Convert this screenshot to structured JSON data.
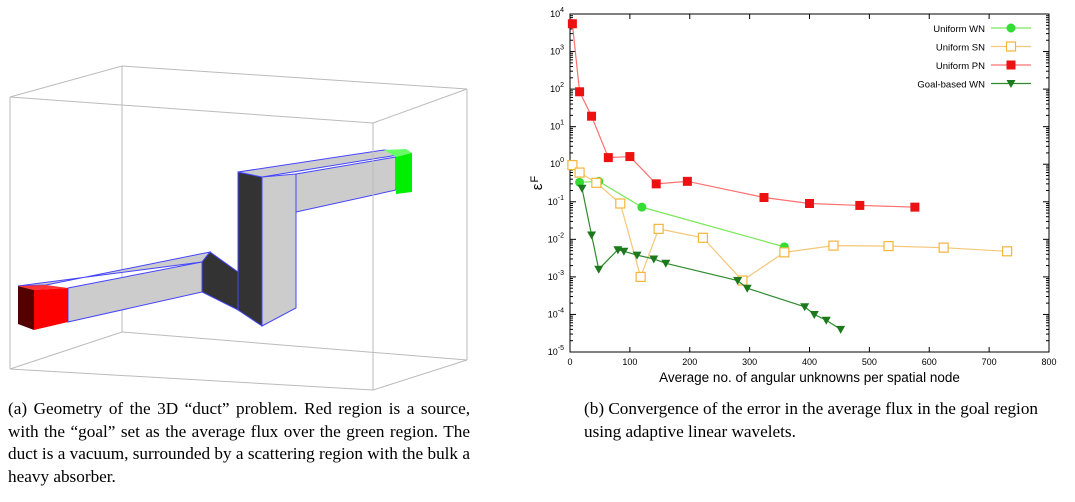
{
  "captions": {
    "a": "(a) Geometry of the 3D “duct” problem. Red region is a source, with the “goal” set as the average flux over the green region. The duct is a vacuum, surrounded by a scattering region with the bulk a heavy absorber.",
    "b": "(b) Convergence of the error in the average flux in the goal region using adaptive linear wavelets."
  },
  "colors": {
    "source": "#ff0000",
    "goal": "#00ee00",
    "duct": "#cccccc",
    "duct_dark": "#333333",
    "duct_edge": "#4444ff",
    "box": "#bbbbbb"
  },
  "chart_data": {
    "type": "line",
    "xlabel": "Average no. of angular unknowns per spatial node",
    "ylabel": "εF",
    "ylabel_main": "ε",
    "ylabel_sub": "F",
    "xlim": [
      0,
      800
    ],
    "ylim": [
      1e-05,
      10000.0
    ],
    "yscale": "log",
    "grid": false,
    "legend_position": "top-right",
    "x_ticks": [
      "0",
      "100",
      "200",
      "300",
      "400",
      "500",
      "600",
      "700",
      "800"
    ],
    "y_ticks": [
      {
        "base": "10",
        "exp": "-5"
      },
      {
        "base": "10",
        "exp": "-4"
      },
      {
        "base": "10",
        "exp": "-3"
      },
      {
        "base": "10",
        "exp": "-2"
      },
      {
        "base": "10",
        "exp": "-1"
      },
      {
        "base": "10",
        "exp": "0"
      },
      {
        "base": "10",
        "exp": "1"
      },
      {
        "base": "10",
        "exp": "2"
      },
      {
        "base": "10",
        "exp": "3"
      },
      {
        "base": "10",
        "exp": "4"
      }
    ],
    "series": [
      {
        "name": "Uniform WN",
        "color": "#7be85a",
        "marker": "circle-filled",
        "marker_color": "#33dd33",
        "points": [
          [
            16,
            0.33
          ],
          [
            48,
            0.35
          ],
          [
            120,
            0.072
          ],
          [
            358,
            0.0063
          ]
        ]
      },
      {
        "name": "Uniform SN",
        "color": "#f5c77a",
        "marker": "square-open",
        "marker_color": "#f5b53a",
        "points": [
          [
            4,
            0.95
          ],
          [
            16,
            0.6
          ],
          [
            44,
            0.32
          ],
          [
            84,
            0.09
          ],
          [
            118,
            0.001
          ],
          [
            148,
            0.019
          ],
          [
            222,
            0.011
          ],
          [
            288,
            0.0008
          ],
          [
            358,
            0.0045
          ],
          [
            440,
            0.0068
          ],
          [
            532,
            0.0066
          ],
          [
            624,
            0.006
          ],
          [
            730,
            0.0048
          ]
        ]
      },
      {
        "name": "Uniform PN",
        "color": "#ff7070",
        "marker": "square-filled",
        "marker_color": "#ee1111",
        "points": [
          [
            4,
            5500
          ],
          [
            16,
            85
          ],
          [
            36,
            19
          ],
          [
            64,
            1.5
          ],
          [
            100,
            1.6
          ],
          [
            144,
            0.3
          ],
          [
            196,
            0.35
          ],
          [
            324,
            0.13
          ],
          [
            400,
            0.09
          ],
          [
            484,
            0.08
          ],
          [
            576,
            0.072
          ]
        ]
      },
      {
        "name": "Goal-based WN",
        "color": "#2e8b2e",
        "marker": "triangle-down-filled",
        "marker_color": "#1c7a1c",
        "points": [
          [
            20,
            0.23
          ],
          [
            36,
            0.013
          ],
          [
            48,
            0.0016
          ],
          [
            80,
            0.0053
          ],
          [
            90,
            0.0048
          ],
          [
            112,
            0.0038
          ],
          [
            140,
            0.003
          ],
          [
            160,
            0.0023
          ],
          [
            280,
            0.0008
          ],
          [
            296,
            0.0005
          ],
          [
            392,
            0.00016
          ],
          [
            408,
            0.0001
          ],
          [
            428,
            7e-05
          ],
          [
            452,
            4e-05
          ]
        ]
      }
    ]
  }
}
